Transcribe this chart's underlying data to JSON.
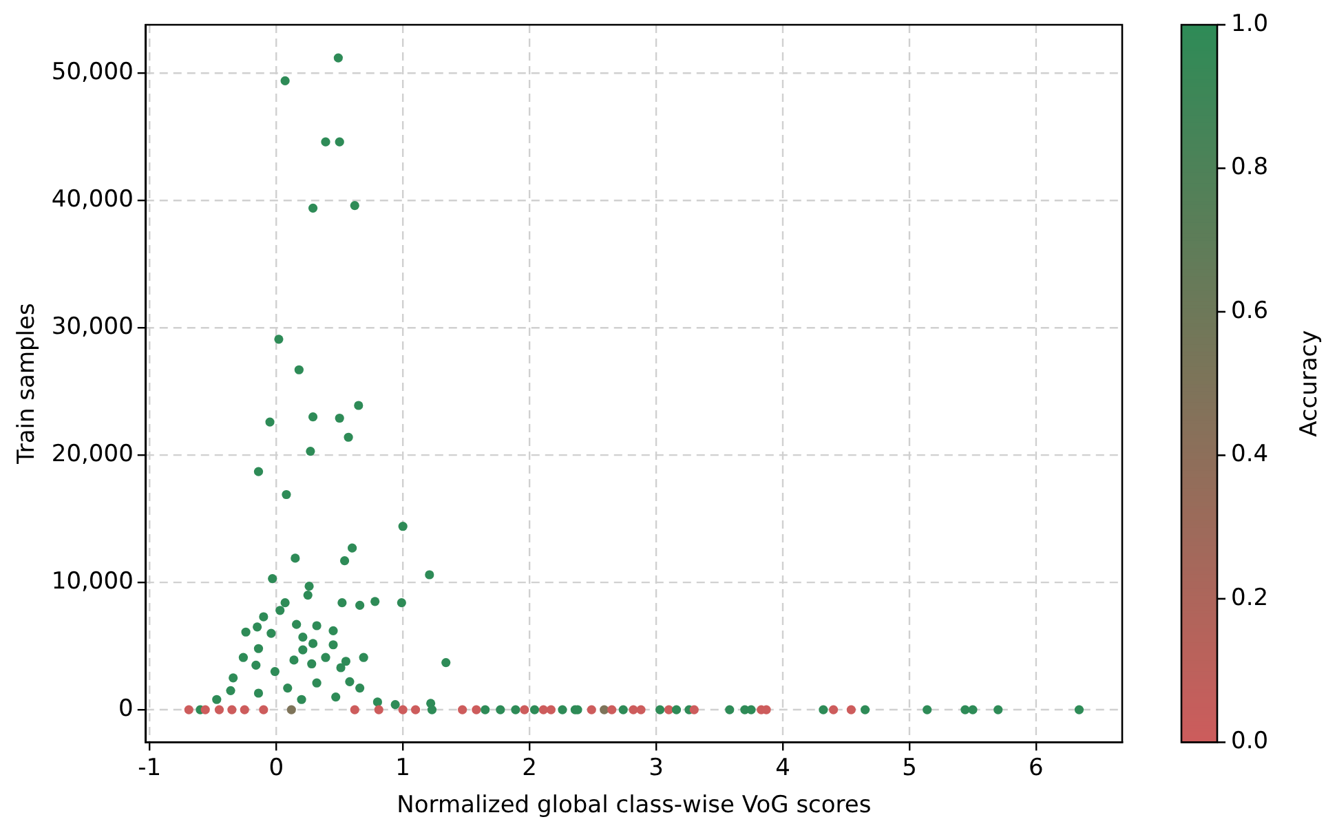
{
  "chart_data": {
    "type": "scatter",
    "xlabel": "Normalized global class-wise VoG scores",
    "ylabel": "Train samples",
    "clabel": "Accuracy",
    "x": [
      0.49,
      0.07,
      0.39,
      0.5,
      0.29,
      0.62,
      0.02,
      0.18,
      0.65,
      0.29,
      0.5,
      -0.05,
      0.57,
      0.27,
      -0.14,
      0.08,
      1.0,
      0.6,
      0.54,
      0.15,
      1.21,
      -0.03,
      0.26,
      0.25,
      0.07,
      0.52,
      0.66,
      0.78,
      0.99,
      0.03,
      -0.1,
      0.16,
      0.32,
      -0.15,
      -0.24,
      -0.04,
      0.45,
      0.21,
      0.45,
      0.29,
      -0.14,
      0.21,
      1.34,
      -0.26,
      0.69,
      0.14,
      0.55,
      0.39,
      0.28,
      -0.16,
      -0.34,
      -0.01,
      0.51,
      0.58,
      -0.36,
      -0.47,
      0.8,
      0.94,
      1.22,
      0.09,
      0.32,
      -0.14,
      0.47,
      0.66,
      0.2,
      -0.69,
      -0.6,
      -0.56,
      -0.45,
      -0.35,
      -0.25,
      -0.1,
      0.12,
      0.62,
      0.81,
      1.0,
      1.1,
      1.23,
      1.47,
      1.58,
      1.65,
      1.77,
      1.89,
      1.96,
      2.04,
      2.11,
      2.17,
      2.26,
      2.36,
      2.38,
      2.49,
      2.59,
      2.65,
      2.74,
      2.82,
      2.88,
      3.03,
      3.1,
      3.16,
      3.26,
      3.3,
      3.58,
      3.7,
      3.75,
      3.83,
      3.87,
      4.32,
      4.4,
      4.54,
      4.65,
      5.14,
      5.44,
      5.5,
      5.7,
      6.34
    ],
    "values": [
      51200,
      49400,
      44600,
      44600,
      39400,
      39600,
      29100,
      26700,
      23900,
      23000,
      22900,
      22600,
      21400,
      20300,
      18700,
      16900,
      14400,
      12700,
      11700,
      11900,
      10600,
      10300,
      9700,
      9000,
      8400,
      8400,
      8200,
      8500,
      8400,
      7800,
      7300,
      6700,
      6600,
      6500,
      6100,
      6000,
      6200,
      5700,
      5100,
      5200,
      4800,
      4700,
      3700,
      4100,
      4100,
      3900,
      3800,
      4100,
      3600,
      3500,
      2500,
      3000,
      3300,
      2200,
      1500,
      800,
      600,
      400,
      500,
      1700,
      2100,
      1300,
      1000,
      1700,
      800,
      0,
      0,
      0,
      0,
      0,
      0,
      0,
      0,
      0,
      0,
      0,
      0,
      0,
      0,
      0,
      0,
      0,
      0,
      0,
      0,
      0,
      0,
      0,
      0,
      0,
      0,
      0,
      0,
      0,
      0,
      0,
      0,
      0,
      0,
      0,
      0,
      0,
      0,
      0,
      0,
      0,
      0,
      0,
      0,
      0,
      0,
      0,
      0,
      0,
      0
    ],
    "cvalues": [
      1,
      1,
      1,
      1,
      1,
      1,
      1,
      1,
      1,
      1,
      1,
      1,
      1,
      1,
      1,
      1,
      1,
      1,
      1,
      1,
      1,
      1,
      1,
      1,
      1,
      1,
      1,
      1,
      1,
      1,
      1,
      1,
      1,
      1,
      1,
      1,
      1,
      1,
      1,
      1,
      1,
      1,
      1,
      1,
      1,
      1,
      1,
      1,
      1,
      1,
      1,
      1,
      1,
      1,
      1,
      1,
      1,
      1,
      1,
      1,
      1,
      1,
      1,
      1,
      1,
      0,
      1,
      0,
      0,
      0,
      0,
      0,
      0.5,
      0,
      0,
      0,
      0,
      1,
      0,
      0,
      1,
      1,
      1,
      0,
      1,
      0,
      0,
      1,
      1,
      1,
      0,
      0.5,
      0,
      1,
      0,
      0,
      1,
      0,
      1,
      1,
      0,
      1,
      1,
      1,
      0,
      0,
      1,
      0,
      0,
      1,
      1,
      1,
      1,
      1,
      1
    ],
    "colors": [
      "#2e8b57",
      "#2e8b57",
      "#2e8b57",
      "#2e8b57",
      "#2e8b57",
      "#2e8b57",
      "#2e8b57",
      "#2e8b57",
      "#2e8b57",
      "#2e8b57",
      "#2e8b57",
      "#2e8b57",
      "#2e8b57",
      "#2e8b57",
      "#2e8b57",
      "#2e8b57",
      "#2e8b57",
      "#2e8b57",
      "#2e8b57",
      "#2e8b57",
      "#2e8b57",
      "#2e8b57",
      "#2e8b57",
      "#2e8b57",
      "#2e8b57",
      "#2e8b57",
      "#2e8b57",
      "#2e8b57",
      "#2e8b57",
      "#2e8b57",
      "#2e8b57",
      "#2e8b57",
      "#2e8b57",
      "#2e8b57",
      "#2e8b57",
      "#2e8b57",
      "#2e8b57",
      "#2e8b57",
      "#2e8b57",
      "#2e8b57",
      "#2e8b57",
      "#2e8b57",
      "#2e8b57",
      "#2e8b57",
      "#2e8b57",
      "#2e8b57",
      "#2e8b57",
      "#2e8b57",
      "#2e8b57",
      "#2e8b57",
      "#2e8b57",
      "#2e8b57",
      "#2e8b57",
      "#2e8b57",
      "#2e8b57",
      "#2e8b57",
      "#2e8b57",
      "#2e8b57",
      "#2e8b57",
      "#2e8b57",
      "#2e8b57",
      "#2e8b57",
      "#2e8b57",
      "#2e8b57",
      "#2e8b57",
      "#cd5c5c",
      "#2e8b57",
      "#cd5c5c",
      "#cd5c5c",
      "#cd5c5c",
      "#cd5c5c",
      "#cd5c5c",
      "#7e745a",
      "#cd5c5c",
      "#cd5c5c",
      "#cd5c5c",
      "#cd5c5c",
      "#2e8b57",
      "#cd5c5c",
      "#cd5c5c",
      "#2e8b57",
      "#2e8b57",
      "#2e8b57",
      "#cd5c5c",
      "#2e8b57",
      "#cd5c5c",
      "#cd5c5c",
      "#2e8b57",
      "#2e8b57",
      "#2e8b57",
      "#cd5c5c",
      "#7e745a",
      "#cd5c5c",
      "#2e8b57",
      "#cd5c5c",
      "#cd5c5c",
      "#2e8b57",
      "#cd5c5c",
      "#2e8b57",
      "#2e8b57",
      "#cd5c5c",
      "#2e8b57",
      "#2e8b57",
      "#2e8b57",
      "#cd5c5c",
      "#cd5c5c",
      "#2e8b57",
      "#cd5c5c",
      "#cd5c5c",
      "#2e8b57",
      "#2e8b57",
      "#2e8b57",
      "#2e8b57",
      "#2e8b57",
      "#2e8b57"
    ],
    "xlim": [
      -1.03,
      6.68
    ],
    "xticks": [
      -1,
      0,
      1,
      2,
      3,
      4,
      5,
      6
    ],
    "ylim": [
      -2560,
      53800
    ],
    "yticks": [
      {
        "value": 0,
        "label": "0"
      },
      {
        "value": 10000,
        "label": "10,000"
      },
      {
        "value": 20000,
        "label": "20,000"
      },
      {
        "value": 30000,
        "label": "30,000"
      },
      {
        "value": 40000,
        "label": "40,000"
      },
      {
        "value": 50000,
        "label": "50,000"
      }
    ],
    "clim": [
      0,
      1
    ],
    "cticks": [
      {
        "value": 0,
        "label": "0.0"
      },
      {
        "value": 0.2,
        "label": "0.2"
      },
      {
        "value": 0.4,
        "label": "0.4"
      },
      {
        "value": 0.6,
        "label": "0.6"
      },
      {
        "value": 0.8,
        "label": "0.8"
      },
      {
        "value": 1,
        "label": "1.0"
      }
    ],
    "grid": true,
    "line_style": "dashed",
    "marker": "circle",
    "legend": false
  }
}
